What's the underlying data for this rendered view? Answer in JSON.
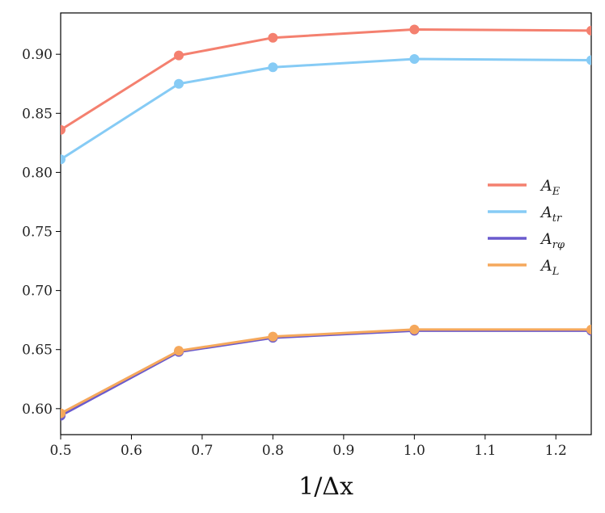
{
  "chart_data": {
    "type": "line",
    "xlabel": "1/Δx",
    "x": [
      0.5,
      0.667,
      0.8,
      1.0,
      1.25
    ],
    "xlim": [
      0.5,
      1.25
    ],
    "ylim": [
      0.578,
      0.935
    ],
    "xticks": [
      "0.5",
      "0.6",
      "0.7",
      "0.8",
      "0.9",
      "1.0",
      "1.1",
      "1.2"
    ],
    "yticks": [
      "0.60",
      "0.65",
      "0.70",
      "0.75",
      "0.80",
      "0.85",
      "0.90"
    ],
    "grid": false,
    "legend_position": "right",
    "series": [
      {
        "name": "A",
        "sub": "E",
        "color": "#f4806f",
        "values": [
          0.836,
          0.899,
          0.914,
          0.921,
          0.92
        ]
      },
      {
        "name": "A",
        "sub": "tr",
        "color": "#86cbf5",
        "values": [
          0.811,
          0.875,
          0.889,
          0.896,
          0.895
        ]
      },
      {
        "name": "A",
        "sub": "rφ",
        "color": "#6a5acd",
        "values": [
          0.594,
          0.648,
          0.66,
          0.666,
          0.666
        ]
      },
      {
        "name": "A",
        "sub": "L",
        "color": "#f5a85c",
        "values": [
          0.596,
          0.649,
          0.661,
          0.667,
          0.667
        ]
      }
    ]
  }
}
